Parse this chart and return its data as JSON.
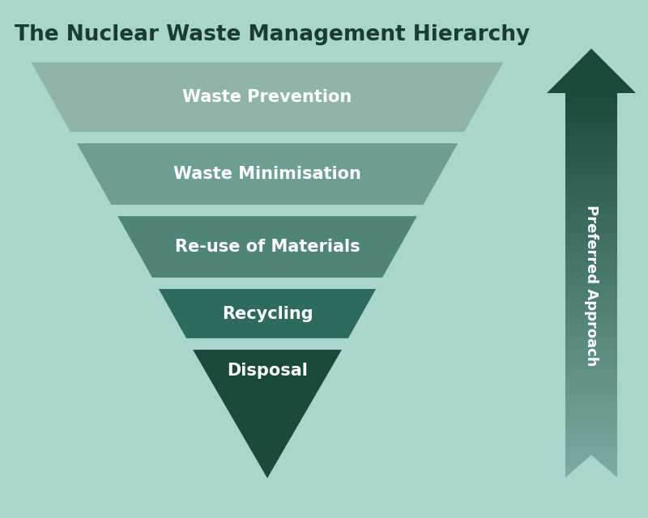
{
  "title": "The Nuclear Waste Management Hierarchy",
  "title_color": "#1a3c34",
  "title_fontsize": 19,
  "background_color": "#a8d5cc",
  "labels": [
    "Waste Prevention",
    "Waste Minimisation",
    "Re-use of Materials",
    "Recycling",
    "Disposal"
  ],
  "label_color": "#ffffff",
  "label_fontsize": 15,
  "colors": [
    "#8fb5ab",
    "#6d9e93",
    "#4e8578",
    "#2e6b5e",
    "#1a4a3c"
  ],
  "arrow_label": "Preferred Approach",
  "arrow_label_color": "#ffffff",
  "arrow_label_fontsize": 13,
  "arrow_color_top": "#1a4a3c",
  "arrow_color_bottom": "#7aada3"
}
